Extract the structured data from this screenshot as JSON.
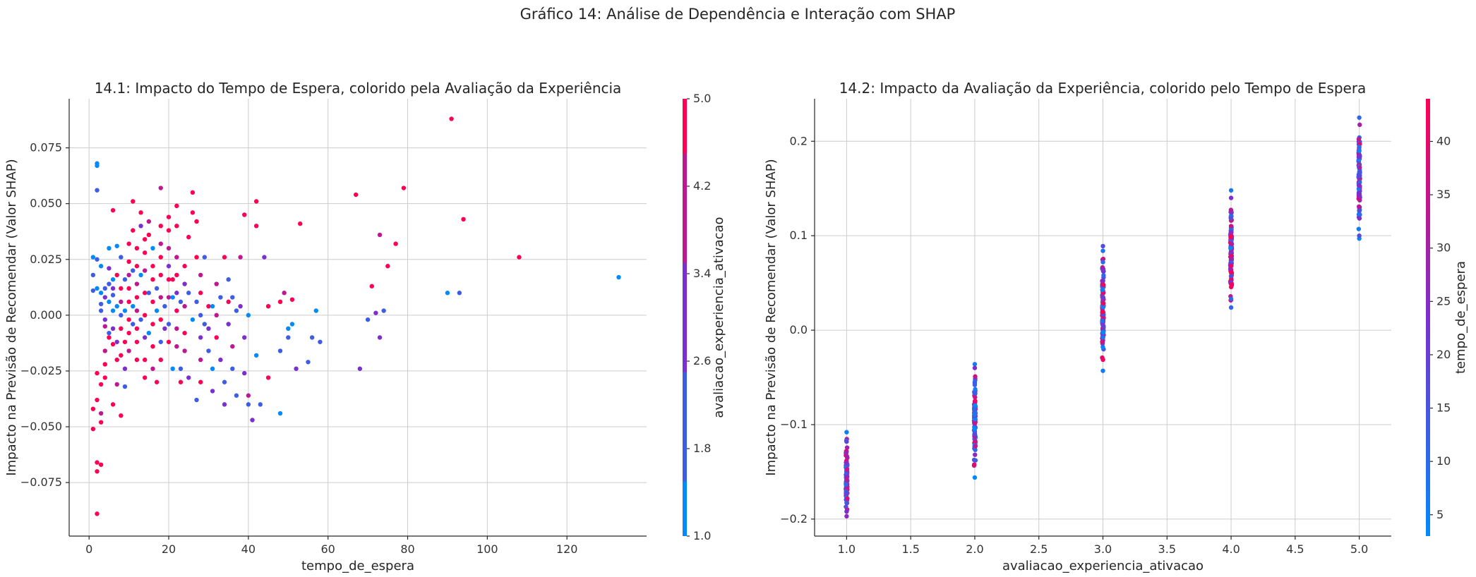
{
  "figure": {
    "title": "Gráfico 14: Análise de Dependência e Interação com SHAP"
  },
  "colorscale": {
    "low": "#008afb",
    "mid": "#7c2fcf",
    "high": "#ff0052"
  },
  "chart_data": [
    {
      "type": "scatter",
      "title": "14.1: Impacto do Tempo de Espera, colorido pela Avaliação da Experiência",
      "xlabel": "tempo_de_espera",
      "ylabel": "Impacto na Previsão de Recomendar (Valor SHAP)",
      "xlim": [
        -5,
        140
      ],
      "ylim": [
        -0.099,
        0.097
      ],
      "xticks": [
        0,
        20,
        40,
        60,
        80,
        100,
        120
      ],
      "xtick_labels": [
        "0",
        "20",
        "40",
        "60",
        "80",
        "100",
        "120"
      ],
      "yticks": [
        -0.075,
        -0.05,
        -0.025,
        0.0,
        0.025,
        0.05,
        0.075
      ],
      "ytick_labels": [
        "−0.075",
        "−0.050",
        "−0.025",
        "0.000",
        "0.025",
        "0.050",
        "0.075"
      ],
      "grid": true,
      "colorbar": {
        "label": "avaliacao_experiencia_ativacao",
        "range": [
          1.0,
          5.0
        ],
        "ticks": [
          1.0,
          1.8,
          2.6,
          3.4,
          4.2,
          5.0
        ],
        "tick_labels": [
          "1.0",
          "1.8",
          "2.6",
          "3.4",
          "4.2",
          "5.0"
        ],
        "discrete_steps": 5
      },
      "points": [
        [
          2,
          0.068,
          1
        ],
        [
          2,
          0.067,
          1
        ],
        [
          2,
          0.056,
          2
        ],
        [
          1,
          0.026,
          1
        ],
        [
          2,
          0.025,
          2
        ],
        [
          3,
          0.022,
          1
        ],
        [
          1,
          0.018,
          2
        ],
        [
          2,
          0.012,
          1
        ],
        [
          1,
          0.011,
          2
        ],
        [
          3,
          0.01,
          1
        ],
        [
          1,
          -0.042,
          5
        ],
        [
          1,
          -0.051,
          5
        ],
        [
          2,
          -0.066,
          5
        ],
        [
          3,
          -0.067,
          5
        ],
        [
          2,
          -0.07,
          5
        ],
        [
          2,
          -0.089,
          5
        ],
        [
          3,
          -0.048,
          5
        ],
        [
          3,
          -0.044,
          4
        ],
        [
          2,
          -0.038,
          5
        ],
        [
          3,
          -0.031,
          5
        ],
        [
          2,
          -0.026,
          5
        ],
        [
          4,
          -0.022,
          5
        ],
        [
          4,
          -0.028,
          5
        ],
        [
          4,
          -0.016,
          4
        ],
        [
          5,
          -0.01,
          5
        ],
        [
          4,
          -0.005,
          4
        ],
        [
          3,
          0.002,
          2
        ],
        [
          4,
          0.008,
          3
        ],
        [
          5,
          0.014,
          2
        ],
        [
          5,
          0.03,
          1
        ],
        [
          6,
          0.047,
          5
        ],
        [
          5,
          0.021,
          3
        ],
        [
          6,
          0.016,
          1
        ],
        [
          6,
          0.009,
          2
        ],
        [
          6,
          0.002,
          1
        ],
        [
          6,
          -0.006,
          3
        ],
        [
          6,
          -0.013,
          5
        ],
        [
          7,
          -0.02,
          5
        ],
        [
          7,
          -0.031,
          4
        ],
        [
          6,
          -0.04,
          5
        ],
        [
          7,
          0.031,
          1
        ],
        [
          8,
          0.026,
          2
        ],
        [
          7,
          0.018,
          5
        ],
        [
          8,
          0.012,
          5
        ],
        [
          8,
          0.006,
          4
        ],
        [
          8,
          0.0,
          2
        ],
        [
          8,
          -0.006,
          5
        ],
        [
          9,
          -0.012,
          5
        ],
        [
          8,
          -0.018,
          5
        ],
        [
          9,
          -0.024,
          3
        ],
        [
          8,
          -0.045,
          5
        ],
        [
          9,
          -0.032,
          2
        ],
        [
          10,
          0.032,
          5
        ],
        [
          10,
          0.024,
          5
        ],
        [
          10,
          0.018,
          4
        ],
        [
          10,
          0.012,
          5
        ],
        [
          10,
          0.006,
          5
        ],
        [
          10,
          -0.002,
          5
        ],
        [
          10,
          -0.008,
          5
        ],
        [
          10,
          -0.016,
          4
        ],
        [
          11,
          0.051,
          5
        ],
        [
          11,
          0.038,
          5
        ],
        [
          12,
          0.03,
          5
        ],
        [
          12,
          0.022,
          5
        ],
        [
          12,
          0.014,
          4
        ],
        [
          12,
          0.008,
          5
        ],
        [
          12,
          0.002,
          4
        ],
        [
          12,
          -0.006,
          5
        ],
        [
          12,
          -0.012,
          5
        ],
        [
          12,
          -0.02,
          5
        ],
        [
          13,
          0.046,
          5
        ],
        [
          13,
          0.04,
          3
        ],
        [
          14,
          0.034,
          5
        ],
        [
          14,
          0.028,
          5
        ],
        [
          14,
          0.02,
          4
        ],
        [
          14,
          0.01,
          5
        ],
        [
          14,
          0.0,
          5
        ],
        [
          14,
          -0.01,
          3
        ],
        [
          14,
          -0.02,
          5
        ],
        [
          14,
          -0.028,
          5
        ],
        [
          15,
          0.042,
          4
        ],
        [
          15,
          0.036,
          5
        ],
        [
          16,
          0.03,
          1
        ],
        [
          16,
          0.022,
          5
        ],
        [
          16,
          0.016,
          5
        ],
        [
          16,
          0.006,
          5
        ],
        [
          16,
          -0.004,
          5
        ],
        [
          16,
          -0.014,
          5
        ],
        [
          16,
          -0.024,
          4
        ],
        [
          17,
          -0.03,
          5
        ],
        [
          18,
          0.057,
          4
        ],
        [
          18,
          0.04,
          5
        ],
        [
          18,
          0.032,
          4
        ],
        [
          18,
          0.026,
          5
        ],
        [
          18,
          0.018,
          5
        ],
        [
          18,
          0.008,
          4
        ],
        [
          18,
          -0.002,
          5
        ],
        [
          18,
          -0.012,
          2
        ],
        [
          18,
          -0.02,
          5
        ],
        [
          17,
          0.002,
          1
        ],
        [
          20,
          0.044,
          5
        ],
        [
          20,
          0.038,
          5
        ],
        [
          20,
          0.03,
          4
        ],
        [
          20,
          0.022,
          3
        ],
        [
          20,
          0.016,
          5
        ],
        [
          20,
          0.008,
          4
        ],
        [
          20,
          -0.004,
          2
        ],
        [
          20,
          -0.012,
          5
        ],
        [
          21,
          -0.024,
          1
        ],
        [
          21,
          0.016,
          5
        ],
        [
          22,
          0.049,
          5
        ],
        [
          22,
          0.04,
          5
        ],
        [
          22,
          0.026,
          4
        ],
        [
          22,
          0.018,
          5
        ],
        [
          22,
          0.01,
          3
        ],
        [
          22,
          0.002,
          5
        ],
        [
          22,
          -0.006,
          4
        ],
        [
          22,
          -0.014,
          4
        ],
        [
          23,
          -0.024,
          2
        ],
        [
          23,
          -0.03,
          5
        ],
        [
          24,
          0.022,
          5
        ],
        [
          24,
          0.014,
          3
        ],
        [
          24,
          0.004,
          4
        ],
        [
          24,
          -0.008,
          5
        ],
        [
          24,
          -0.016,
          4
        ],
        [
          25,
          -0.028,
          3
        ],
        [
          25,
          0.035,
          5
        ],
        [
          26,
          0.055,
          5
        ],
        [
          26,
          0.046,
          5
        ],
        [
          27,
          0.042,
          5
        ],
        [
          27,
          0.026,
          5
        ],
        [
          28,
          0.018,
          4
        ],
        [
          28,
          0.01,
          5
        ],
        [
          28,
          0.0,
          2
        ],
        [
          28,
          -0.01,
          3
        ],
        [
          28,
          -0.02,
          4
        ],
        [
          28,
          -0.03,
          5
        ],
        [
          27,
          -0.038,
          2
        ],
        [
          29,
          0.026,
          2
        ],
        [
          30,
          0.004,
          5
        ],
        [
          30,
          -0.006,
          3
        ],
        [
          30,
          -0.016,
          2
        ],
        [
          31,
          -0.024,
          1
        ],
        [
          31,
          -0.034,
          3
        ],
        [
          32,
          0.014,
          4
        ],
        [
          32,
          0.0,
          4
        ],
        [
          32,
          -0.01,
          5
        ],
        [
          33,
          -0.02,
          3
        ],
        [
          34,
          -0.03,
          2
        ],
        [
          34,
          -0.04,
          3
        ],
        [
          34,
          0.026,
          5
        ],
        [
          35,
          0.016,
          2
        ],
        [
          35,
          0.006,
          5
        ],
        [
          35,
          -0.004,
          3
        ],
        [
          36,
          -0.014,
          4
        ],
        [
          36,
          -0.024,
          2
        ],
        [
          37,
          -0.036,
          2
        ],
        [
          38,
          0.026,
          4
        ],
        [
          38,
          0.004,
          3
        ],
        [
          39,
          0.045,
          5
        ],
        [
          39,
          -0.01,
          3
        ],
        [
          39,
          -0.026,
          3
        ],
        [
          40,
          -0.036,
          4
        ],
        [
          40,
          -0.04,
          2
        ],
        [
          40,
          0.0,
          1
        ],
        [
          41,
          -0.047,
          3
        ],
        [
          42,
          0.051,
          5
        ],
        [
          42,
          0.04,
          5
        ],
        [
          42,
          -0.018,
          1
        ],
        [
          43,
          -0.04,
          2
        ],
        [
          44,
          0.026,
          3
        ],
        [
          45,
          0.004,
          5
        ],
        [
          45,
          -0.028,
          5
        ],
        [
          48,
          0.006,
          5
        ],
        [
          48,
          -0.016,
          2
        ],
        [
          48,
          -0.044,
          1
        ],
        [
          49,
          0.01,
          4
        ],
        [
          50,
          -0.006,
          1
        ],
        [
          50,
          -0.01,
          2
        ],
        [
          51,
          0.007,
          5
        ],
        [
          51,
          -0.004,
          1
        ],
        [
          52,
          -0.024,
          3
        ],
        [
          53,
          0.041,
          5
        ],
        [
          55,
          -0.021,
          2
        ],
        [
          56,
          -0.01,
          2
        ],
        [
          57,
          0.002,
          1
        ],
        [
          58,
          -0.012,
          2
        ],
        [
          67,
          0.054,
          5
        ],
        [
          68,
          -0.024,
          3
        ],
        [
          70,
          -0.002,
          2
        ],
        [
          71,
          0.013,
          5
        ],
        [
          72,
          0.001,
          3
        ],
        [
          73,
          0.036,
          4
        ],
        [
          73,
          -0.01,
          3
        ],
        [
          74,
          0.002,
          2
        ],
        [
          75,
          0.022,
          5
        ],
        [
          77,
          0.032,
          5
        ],
        [
          79,
          0.057,
          5
        ],
        [
          90,
          0.01,
          1
        ],
        [
          91,
          0.088,
          5
        ],
        [
          93,
          0.01,
          2
        ],
        [
          94,
          0.043,
          5
        ],
        [
          108,
          0.026,
          5
        ],
        [
          133,
          0.017,
          1
        ],
        [
          3,
          0.005,
          2
        ],
        [
          4,
          0.012,
          2
        ],
        [
          4,
          -0.002,
          3
        ],
        [
          5,
          0.006,
          1
        ],
        [
          5,
          -0.008,
          2
        ],
        [
          6,
          0.012,
          3
        ],
        [
          7,
          0.004,
          1
        ],
        [
          7,
          -0.012,
          3
        ],
        [
          9,
          0.016,
          2
        ],
        [
          9,
          0.002,
          1
        ],
        [
          11,
          0.02,
          2
        ],
        [
          11,
          0.004,
          1
        ],
        [
          11,
          -0.004,
          2
        ],
        [
          13,
          0.018,
          1
        ],
        [
          13,
          -0.002,
          2
        ],
        [
          15,
          0.01,
          2
        ],
        [
          15,
          -0.008,
          1
        ],
        [
          17,
          0.012,
          2
        ],
        [
          19,
          0.004,
          2
        ],
        [
          19,
          -0.006,
          3
        ],
        [
          21,
          0.008,
          1
        ],
        [
          23,
          0.006,
          2
        ],
        [
          25,
          0.01,
          2
        ],
        [
          26,
          -0.002,
          1
        ],
        [
          27,
          0.006,
          2
        ],
        [
          29,
          -0.004,
          2
        ],
        [
          31,
          0.004,
          1
        ],
        [
          33,
          0.008,
          2
        ],
        [
          36,
          0.008,
          2
        ],
        [
          37,
          0.002,
          2
        ]
      ]
    },
    {
      "type": "scatter",
      "title": "14.2: Impacto da Avaliação da Experiência, colorido pelo Tempo de Espera",
      "xlabel": "avaliacao_experiencia_ativacao",
      "ylabel": "Impacto na Previsão de Recomendar (Valor SHAP)",
      "xlim": [
        0.75,
        5.25
      ],
      "ylim": [
        -0.218,
        0.245
      ],
      "xticks": [
        1.0,
        1.5,
        2.0,
        2.5,
        3.0,
        3.5,
        4.0,
        4.5,
        5.0
      ],
      "xtick_labels": [
        "1.0",
        "1.5",
        "2.0",
        "2.5",
        "3.0",
        "3.5",
        "4.0",
        "4.5",
        "5.0"
      ],
      "yticks": [
        -0.2,
        -0.1,
        0.0,
        0.1,
        0.2
      ],
      "ytick_labels": [
        "−0.2",
        "−0.1",
        "0.0",
        "0.1",
        "0.2"
      ],
      "grid": true,
      "colorbar": {
        "label": "tempo_de_espera",
        "range": [
          3,
          44
        ],
        "ticks": [
          5,
          10,
          15,
          20,
          25,
          30,
          35,
          40
        ],
        "tick_labels": [
          "5",
          "10",
          "15",
          "20",
          "25",
          "30",
          "35",
          "40"
        ]
      },
      "columns": [
        {
          "x": 1.0,
          "ymin": -0.197,
          "ymax": -0.108,
          "extra": [
            -0.108,
            -0.118,
            -0.192,
            -0.197
          ]
        },
        {
          "x": 2.0,
          "ymin": -0.156,
          "ymax": -0.036,
          "extra": [
            -0.036,
            -0.04,
            -0.056,
            -0.058,
            -0.156
          ]
        },
        {
          "x": 3.0,
          "ymin": -0.043,
          "ymax": 0.089,
          "extra": [
            0.089,
            0.084,
            0.072,
            -0.043
          ]
        },
        {
          "x": 4.0,
          "ymin": 0.024,
          "ymax": 0.148,
          "extra": [
            0.148,
            0.14,
            0.033,
            0.024
          ]
        },
        {
          "x": 5.0,
          "ymin": 0.097,
          "ymax": 0.225,
          "extra": [
            0.225,
            0.194,
            0.19,
            0.097,
            0.1
          ]
        }
      ]
    }
  ]
}
